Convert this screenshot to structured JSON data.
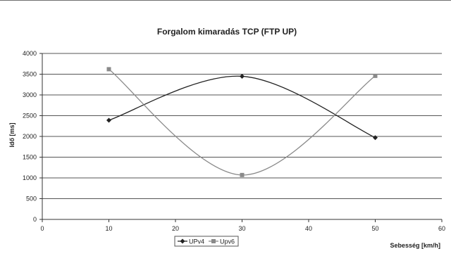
{
  "chart_data": {
    "type": "line",
    "title": "Forgalom kimaradás TCP (FTP UP)",
    "xlabel": "Sebesség [km/h]",
    "ylabel": "Idő [ms]",
    "xlim": [
      0,
      60
    ],
    "ylim": [
      0,
      4000
    ],
    "x_ticks": [
      0,
      10,
      20,
      30,
      40,
      50,
      60
    ],
    "y_ticks": [
      0,
      500,
      1000,
      1500,
      2000,
      2500,
      3000,
      3500,
      4000
    ],
    "grid": "horizontal",
    "legend_position": "bottom",
    "smooth": true,
    "series": [
      {
        "name": "UPv4",
        "color": "#222222",
        "marker": "diamond",
        "x": [
          10,
          30,
          50
        ],
        "y": [
          2390,
          3450,
          1970
        ]
      },
      {
        "name": "Upv6",
        "color": "#8a8a8a",
        "marker": "square",
        "x": [
          10,
          30,
          50
        ],
        "y": [
          3620,
          1070,
          3460
        ]
      }
    ]
  }
}
